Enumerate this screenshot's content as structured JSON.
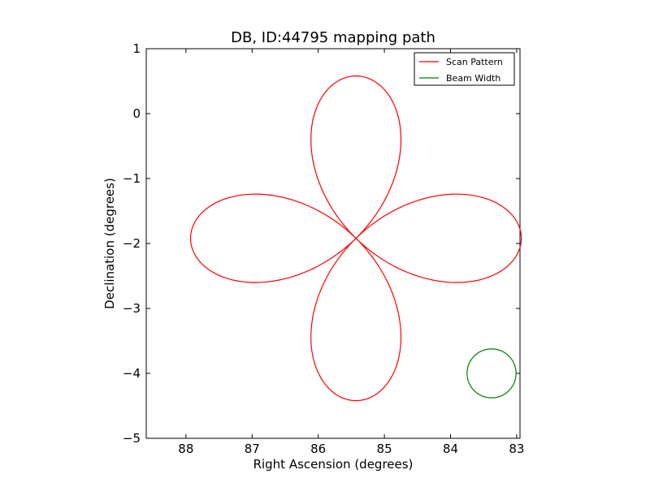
{
  "chart_data": {
    "type": "line",
    "title": "DB, ID:44795 mapping path",
    "xlabel": "Right Ascension (degrees)",
    "ylabel": "Declination (degrees)",
    "xlim": [
      88.6,
      82.95
    ],
    "ylim": [
      -5,
      1
    ],
    "x_ticks": [
      88,
      87,
      86,
      85,
      84,
      83
    ],
    "y_ticks": [
      1,
      0,
      -1,
      -2,
      -3,
      -4,
      -5
    ],
    "x_tick_labels": [
      "88",
      "87",
      "86",
      "85",
      "84",
      "83"
    ],
    "y_tick_labels": [
      "1",
      "0",
      "−1",
      "−2",
      "−3",
      "−4",
      "−5"
    ],
    "grid": false,
    "legend_position": "top-right",
    "series": [
      {
        "name": "Scan Pattern",
        "color": "#ff0000",
        "shape": "four-petal rose",
        "center": [
          85.43,
          -1.92
        ],
        "petal_length": 2.5
      },
      {
        "name": "Beam Width",
        "color": "#008000",
        "shape": "circle",
        "center": [
          83.38,
          -4.0
        ],
        "radius": 0.37
      }
    ]
  }
}
